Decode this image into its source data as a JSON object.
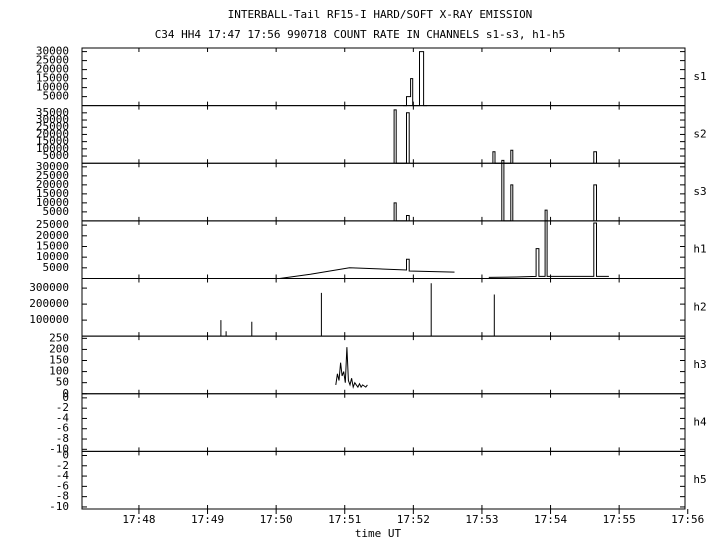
{
  "chart_data": {
    "type": "line",
    "title": "INTERBALL-Tail RF15-I HARD/SOFT X-RAY EMISSION",
    "subtitle": "C34 HH4 17:47 17:56 990718  COUNT RATE IN CHANNELS s1-s3, h1-h5",
    "xlabel": "time UT",
    "xlim": [
      1067.17,
      1075.96
    ],
    "xticks": [
      {
        "value": 1068,
        "label": "17:48"
      },
      {
        "value": 1069,
        "label": "17:49"
      },
      {
        "value": 1070,
        "label": "17:50"
      },
      {
        "value": 1071,
        "label": "17:51"
      },
      {
        "value": 1072,
        "label": "17:52"
      },
      {
        "value": 1073,
        "label": "17:53"
      },
      {
        "value": 1074,
        "label": "17:54"
      },
      {
        "value": 1075,
        "label": "17:55"
      },
      {
        "value": 1076,
        "label": "17:56"
      }
    ],
    "panels": [
      {
        "name": "s1",
        "ylim": [
          0,
          32000
        ],
        "yticks": [
          5000,
          10000,
          15000,
          20000,
          25000,
          30000
        ],
        "x": [
          1071.85,
          1071.9,
          1071.9,
          1071.96,
          1071.96,
          1071.99,
          1071.99,
          1072.09,
          1072.09,
          1072.15,
          1072.15,
          1072.2
        ],
        "values": [
          0,
          0,
          5000,
          5000,
          15000,
          15000,
          0,
          0,
          30000,
          30000,
          0,
          0
        ]
      },
      {
        "name": "s2",
        "ylim": [
          0,
          40000
        ],
        "yticks": [
          5000,
          10000,
          15000,
          20000,
          25000,
          30000,
          35000
        ],
        "x": [
          1071.72,
          1071.72,
          1071.75,
          1071.75,
          1071.9,
          1071.9,
          1071.94,
          1071.94,
          null,
          1073.16,
          1073.16,
          1073.19,
          1073.19,
          1073.29,
          1073.29,
          1073.32,
          1073.32,
          1073.42,
          1073.42,
          1073.45,
          1073.45,
          null,
          1074.63,
          1074.63,
          1074.67,
          1074.67
        ],
        "values": [
          0,
          37000,
          37000,
          0,
          0,
          35000,
          35000,
          0,
          null,
          0,
          8000,
          8000,
          0,
          0,
          2000,
          2000,
          0,
          0,
          9000,
          9000,
          0,
          null,
          0,
          8000,
          8000,
          0
        ]
      },
      {
        "name": "s3",
        "ylim": [
          0,
          32000
        ],
        "yticks": [
          5000,
          10000,
          15000,
          20000,
          25000,
          30000
        ],
        "x": [
          1071.72,
          1071.72,
          1071.75,
          1071.75,
          1071.9,
          1071.9,
          1071.94,
          1071.94,
          null,
          1073.29,
          1073.29,
          1073.32,
          1073.32,
          1073.42,
          1073.42,
          1073.45,
          1073.45,
          null,
          1073.92,
          1073.92,
          1073.95,
          1073.95,
          null,
          1074.63,
          1074.63,
          1074.67,
          1074.67
        ],
        "values": [
          0,
          10000,
          10000,
          0,
          0,
          3000,
          3000,
          0,
          null,
          0,
          32000,
          32000,
          0,
          0,
          20000,
          20000,
          0,
          null,
          0,
          6000,
          6000,
          0,
          null,
          0,
          20000,
          20000,
          0
        ]
      },
      {
        "name": "h1",
        "ylim": [
          0,
          27000
        ],
        "yticks": [
          5000,
          10000,
          15000,
          20000,
          25000
        ],
        "x": [
          1070.05,
          1070.5,
          1071.07,
          1071.5,
          1071.9,
          1071.9,
          1071.94,
          1071.94,
          1072.6,
          null,
          1073.1,
          1073.5,
          1073.79,
          1073.79,
          1073.83,
          1073.83,
          1073.92,
          1073.92,
          1073.95,
          1073.95,
          1074.63,
          1074.63,
          1074.67,
          1074.67,
          1074.85
        ],
        "values": [
          0,
          2000,
          5000,
          4500,
          4000,
          9000,
          9000,
          3500,
          3000,
          null,
          500,
          700,
          1000,
          14000,
          14000,
          1000,
          1000,
          27000,
          27000,
          1000,
          1000,
          26000,
          26000,
          1000,
          1000
        ]
      },
      {
        "name": "h2",
        "ylim": [
          0,
          360000
        ],
        "yticks": [
          100000,
          200000,
          300000
        ],
        "x": [
          1069.195,
          1069.195,
          null,
          1069.27,
          1069.27,
          null,
          1069.645,
          1069.645,
          null,
          1070.66,
          1070.66,
          null,
          1072.26,
          1072.26,
          null,
          1073.18,
          1073.18
        ],
        "values": [
          0,
          100000,
          null,
          0,
          30000,
          null,
          0,
          90000,
          null,
          0,
          270000,
          null,
          0,
          330000,
          null,
          0,
          260000
        ]
      },
      {
        "name": "h3",
        "ylim": [
          0,
          260
        ],
        "yticks": [
          0,
          50,
          100,
          150,
          200,
          250
        ],
        "x": [
          1070.87,
          1070.893,
          1070.916,
          1070.939,
          1070.962,
          1070.985,
          1071.008,
          1071.031,
          1071.054,
          1071.077,
          1071.1,
          1071.123,
          1071.146,
          1071.169,
          1071.192,
          1071.215,
          1071.238,
          1071.261,
          1071.284,
          1071.307,
          1071.33
        ],
        "values": [
          40,
          90,
          60,
          140,
          80,
          100,
          50,
          210,
          60,
          40,
          70,
          30,
          50,
          40,
          30,
          45,
          30,
          40,
          35,
          30,
          40
        ]
      },
      {
        "name": "h4",
        "ylim": [
          -10.4,
          0.8
        ],
        "yticks": [
          -10,
          -8,
          -6,
          -4,
          -2,
          0
        ],
        "x": [],
        "values": []
      },
      {
        "name": "h5",
        "ylim": [
          -10.4,
          0.8
        ],
        "yticks": [
          -10,
          -8,
          -6,
          -4,
          -2,
          0
        ],
        "x": [],
        "values": []
      }
    ]
  }
}
